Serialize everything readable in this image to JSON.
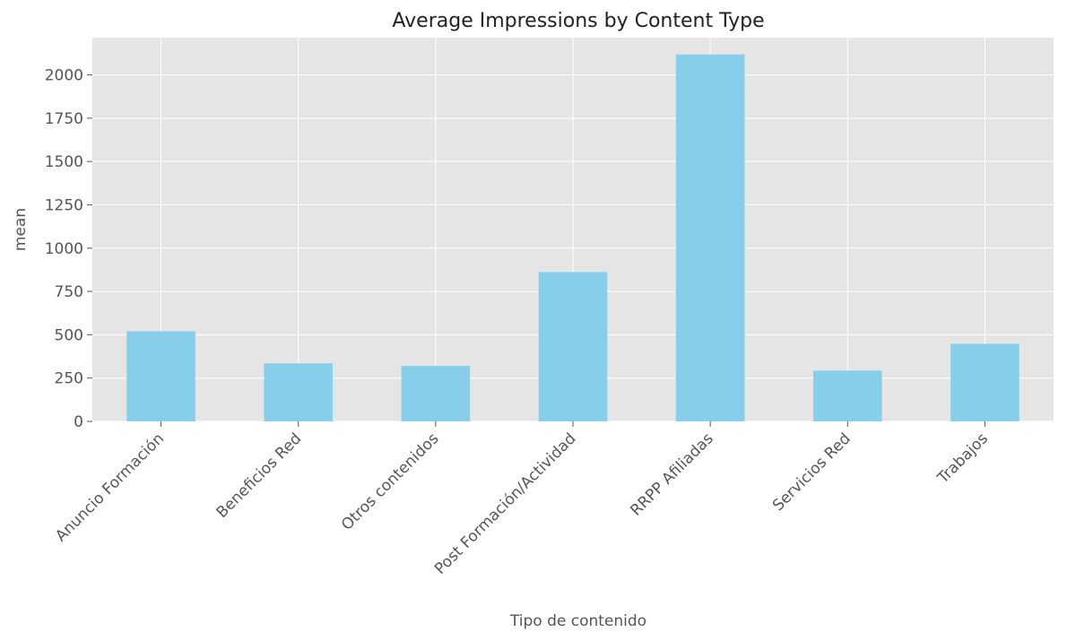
{
  "chart_data": {
    "type": "bar",
    "title": "Average Impressions by Content Type",
    "xlabel": "Tipo de contenido",
    "ylabel": "mean",
    "categories": [
      "Anuncio Formación",
      "Beneficios Red",
      "Otros contenidos",
      "Post Formación/Actividad",
      "RRPP Afiliadas",
      "Servicios Red",
      "Trabajos"
    ],
    "values": [
      520,
      335,
      320,
      862,
      2118,
      293,
      448
    ],
    "ylim": [
      0,
      2215
    ],
    "yticks": [
      0,
      250,
      500,
      750,
      1000,
      1250,
      1500,
      1750,
      2000
    ],
    "grid": true,
    "legend": "none",
    "colors": {
      "bar": "#87ceeb",
      "plot_background": "#e5e5e5",
      "grid": "#ffffff",
      "tick_text": "#555555",
      "title_text": "#222222"
    }
  }
}
